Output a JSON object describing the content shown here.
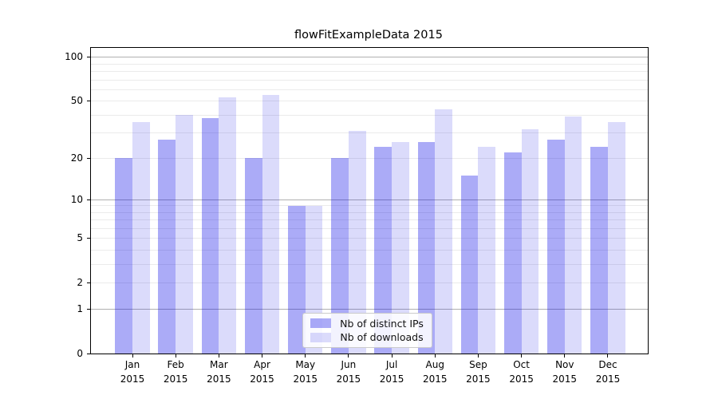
{
  "chart_data": {
    "type": "bar",
    "title": "flowFitExampleData 2015",
    "xlabel": "",
    "ylabel": "",
    "year_line": "2015",
    "categories": [
      "Jan",
      "Feb",
      "Mar",
      "Apr",
      "May",
      "Jun",
      "Jul",
      "Aug",
      "Sep",
      "Oct",
      "Nov",
      "Dec"
    ],
    "series": [
      {
        "name": "Nb of distinct IPs",
        "color": "rgba(0,0,230,0.33)",
        "values": [
          20,
          27,
          38,
          20,
          9,
          20,
          24,
          26,
          15,
          22,
          27,
          24
        ]
      },
      {
        "name": "Nb of downloads",
        "color": "rgba(0,0,230,0.14)",
        "values": [
          36,
          40,
          53,
          55,
          9,
          31,
          26,
          44,
          24,
          32,
          39,
          36
        ]
      }
    ],
    "yscale": "log1p",
    "ylim": [
      0,
      116
    ],
    "yticks": [
      0,
      1,
      2,
      5,
      10,
      20,
      50,
      100
    ],
    "major_gridlines": [
      1,
      10,
      100
    ],
    "minor_gridlines": [
      2,
      3,
      4,
      5,
      6,
      7,
      8,
      9,
      20,
      30,
      40,
      50,
      60,
      70,
      80,
      90
    ],
    "grid": "on",
    "legend_position": "lower-center",
    "colors": {
      "major_grid": "#b0b0b0",
      "minor_grid": "#ebebeb",
      "spine": "#000000",
      "text": "#000000",
      "background": "#ffffff"
    }
  }
}
